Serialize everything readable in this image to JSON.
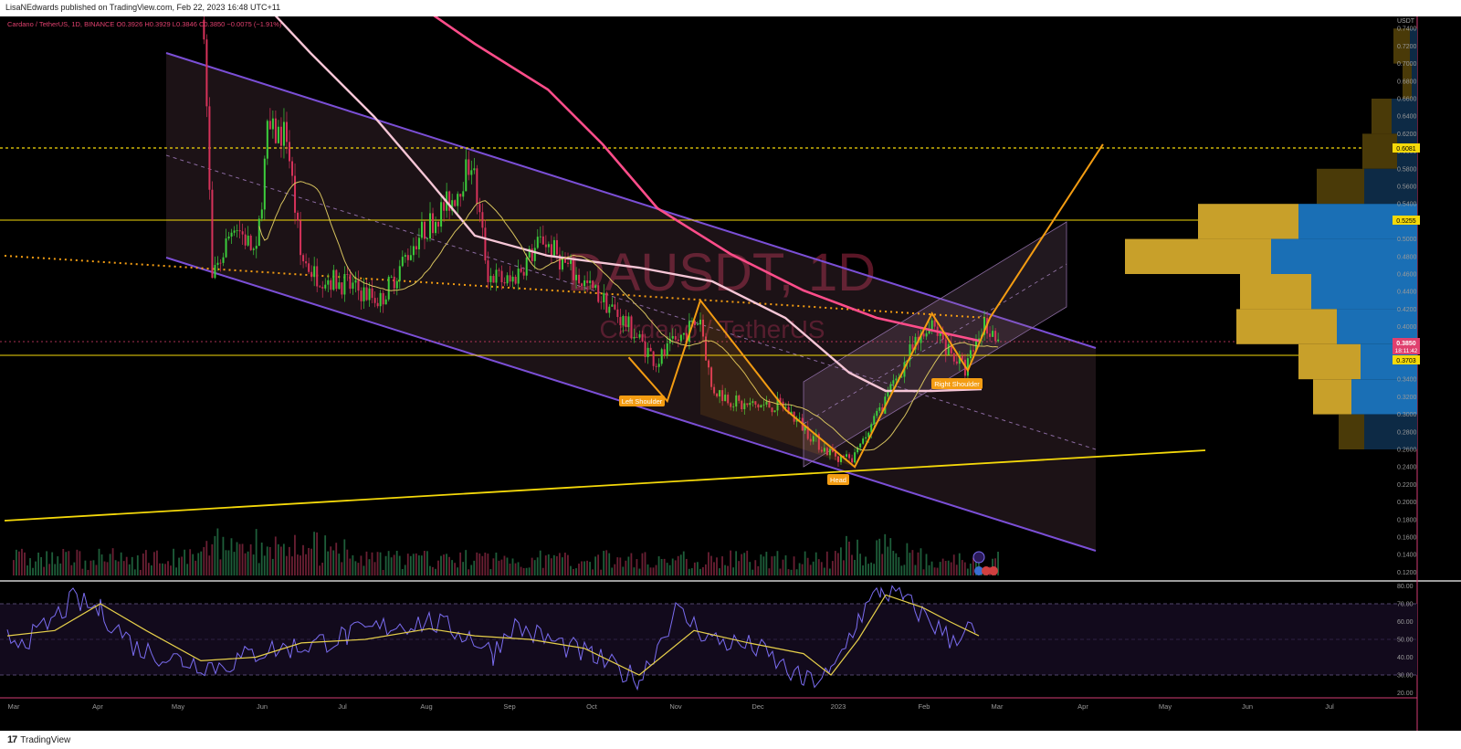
{
  "header": {
    "publish_line": "LisaNEdwards published on TradingView.com, Feb 22, 2023 16:48 UTC+11",
    "legend_line": "Cardano / TetherUS, 1D, BINANCE  O0.3926  H0.3929  L0.3846  C0.3850  −0.0075 (−1.91%)"
  },
  "watermark": {
    "symbol": "DAUSDT, 1D",
    "name": "Cardano / TetherUS"
  },
  "footer": {
    "brand_logo": "17",
    "brand_text": "TradingView"
  },
  "colors": {
    "channel": "#7b4fd6",
    "channel_fill": "rgba(120,80,110,0.22)",
    "yellow_line": "#f5d90a",
    "pattern": "#f39c12",
    "ma_fast": "#d6c25e",
    "ma_pink": "#ff4d8a",
    "ma_white": "#f6c6d6",
    "rsi": "#7a6cf0",
    "rsi_ma": "#e6cf4a",
    "candle_up": "#3ccd3c",
    "candle_down": "#d6325a",
    "price_label_bg": "#f5d90a",
    "last_price_bg": "#e0406e"
  },
  "chart_data": {
    "type": "candlestick",
    "symbol": "Cardano / TetherUS",
    "interval": "1D",
    "exchange": "BINANCE",
    "ohlc_last": {
      "open": 0.3926,
      "high": 0.3929,
      "low": 0.3846,
      "close": 0.385,
      "change": -0.0075,
      "change_pct": -1.91
    },
    "x_ticks": [
      "Mar",
      "Apr",
      "May",
      "Jun",
      "Jul",
      "Aug",
      "Sep",
      "Oct",
      "Nov",
      "Dec",
      "2023",
      "Feb",
      "Mar",
      "Apr",
      "May",
      "Jun",
      "Jul"
    ],
    "y_axis_unit": "USDT",
    "y_ticks": [
      "0.7400",
      "0.7200",
      "0.7000",
      "0.6800",
      "0.6600",
      "0.6400",
      "0.6200",
      "0.6000",
      "0.5800",
      "0.5600",
      "0.5400",
      "0.5200",
      "0.5000",
      "0.4800",
      "0.4600",
      "0.4400",
      "0.4200",
      "0.4000",
      "0.3800",
      "0.3600",
      "0.3400",
      "0.3200",
      "0.3000",
      "0.2800",
      "0.2600",
      "0.2400",
      "0.2200",
      "0.2000",
      "0.1800",
      "0.1600",
      "0.1400",
      "0.1200"
    ],
    "ylim": [
      0.11,
      0.76
    ],
    "price_labels": [
      {
        "value": 0.6081,
        "text": "0.6081"
      },
      {
        "value": 0.5255,
        "text": "0.5255"
      },
      {
        "value": 0.3703,
        "text": "0.3703"
      }
    ],
    "last_price": {
      "value": 0.385,
      "text": "0.3850",
      "countdown": "18:11:42"
    },
    "pattern_labels": [
      "Left Shoulder",
      "Head",
      "Right Shoulder"
    ],
    "pattern_points": [
      {
        "date": "2022-10-10",
        "price": 0.365
      },
      {
        "date": "2022-10-24",
        "price": 0.315
      },
      {
        "date": "2022-11-05",
        "price": 0.43
      },
      {
        "date": "2022-12-06",
        "price": 0.305
      },
      {
        "date": "2022-12-31",
        "price": 0.24
      },
      {
        "date": "2023-01-28",
        "price": 0.415
      },
      {
        "date": "2023-02-10",
        "price": 0.35
      },
      {
        "date": "2023-02-18",
        "price": 0.41
      },
      {
        "date": "2023-03-31",
        "price": 0.608
      }
    ],
    "rsi_ticks": [
      "80.00",
      "70.00",
      "60.00",
      "50.00",
      "40.00",
      "30.00",
      "20.00"
    ],
    "rsi_levels": [
      70,
      50,
      30
    ],
    "rsi_ylim": [
      18,
      82
    ]
  }
}
